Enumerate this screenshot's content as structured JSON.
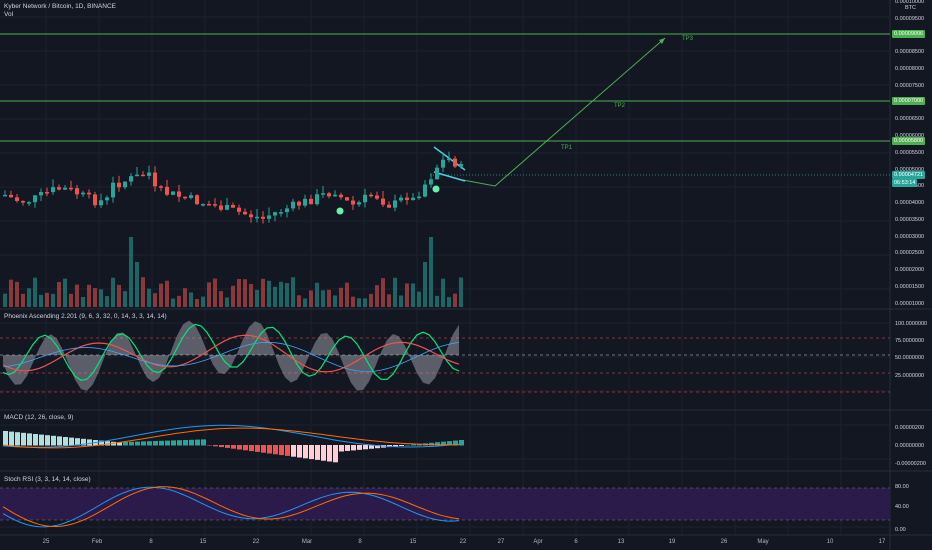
{
  "header": {
    "title": "Kyber Network / Bitcoin, 1D, BINANCE",
    "vol_label": "Vol"
  },
  "price_axis": {
    "currency": "BTC",
    "ticks": [
      "0.00010000",
      "0.00009500",
      "0.00009000",
      "0.00008500",
      "0.00008000",
      "0.00007500",
      "0.00007000",
      "0.00006500",
      "0.00006000",
      "0.00005500",
      "0.00005000",
      "0.00004500",
      "0.00004000",
      "0.00003500",
      "0.00003000",
      "0.00002500",
      "0.00002000",
      "0.00001500",
      "0.00001000"
    ]
  },
  "price_tags": {
    "tp3": "0.00009006",
    "tp2": "0.00007000",
    "tp1": "0.00005800",
    "last_price": "0.00004721",
    "countdown": "06:53:14"
  },
  "targets": {
    "tp1": "TP1",
    "tp2": "TP2",
    "tp3": "TP3"
  },
  "phoenix": {
    "label": "Phoenix Ascending 2.201 (9, 6, 3, 32, 0, 14, 3, 3, 14, 14)",
    "ticks": [
      "100.0000000",
      "75.0000000",
      "50.0000000",
      "25.0000000"
    ]
  },
  "macd": {
    "label": "MACD (12, 26, close, 9)",
    "ticks": [
      "0.00000200",
      "0.00000000",
      "-0.00000200"
    ]
  },
  "stoch": {
    "label": "Stoch RSI (3, 3, 14, 14, close)",
    "ticks": [
      "80.00",
      "40.00",
      "0.00"
    ]
  },
  "time_axis": [
    "25",
    "Feb",
    "8",
    "15",
    "22",
    "Mar",
    "8",
    "15",
    "22",
    "27",
    "Apr",
    "6",
    "13",
    "19",
    "26",
    "May",
    "10",
    "17"
  ],
  "colors": {
    "background": "#131722",
    "bull": "#26a69a",
    "bear": "#ef5350",
    "target_line": "#4caf50",
    "stoch_band": "#2a1b4a"
  }
}
